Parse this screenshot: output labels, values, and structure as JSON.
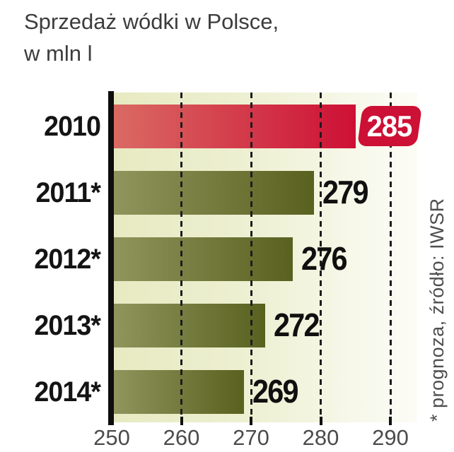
{
  "title": {
    "line1": "Sprzedaż wódki w Polsce,",
    "line2": "w mln l"
  },
  "source_note": "* prognoza, źródło: IWSR",
  "chart_data": {
    "type": "bar",
    "orientation": "horizontal",
    "title": "Sprzedaż wódki w Polsce, w mln l",
    "categories": [
      "2010",
      "2011*",
      "2012*",
      "2013*",
      "2014*"
    ],
    "values": [
      285,
      279,
      276,
      272,
      269
    ],
    "xlabel": "",
    "ylabel": "",
    "xlim": [
      250,
      290
    ],
    "x_ticks": [
      250,
      260,
      270,
      280,
      290
    ],
    "grid": "dashed-vertical",
    "legend": "none",
    "highlight_index": 0,
    "colors": {
      "highlight_bar_start": "#da6a63",
      "highlight_bar_end": "#cd1035",
      "badge_bg": "#cd1035",
      "badge_text": "#ffffff",
      "bar_start": "#8f955c",
      "bar_end": "#59611f",
      "plot_bg_start": "#e7eac1",
      "plot_bg_end": "#fcfcf6",
      "axis": "#0e0e0e",
      "label_text": "#141414"
    }
  }
}
